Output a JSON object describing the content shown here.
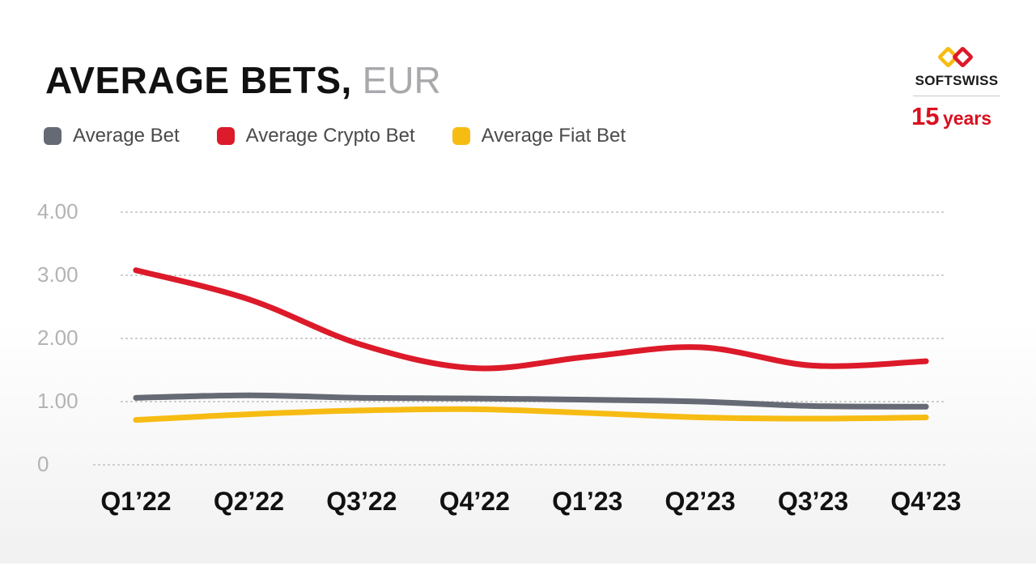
{
  "chart_data": {
    "type": "line",
    "title": "AVERAGE BETS,",
    "title_unit": "EUR",
    "categories": [
      "Q1’22",
      "Q2’22",
      "Q3’22",
      "Q4’22",
      "Q1’23",
      "Q2’23",
      "Q3’23",
      "Q4’23"
    ],
    "y_ticks": [
      "4.00",
      "3.00",
      "2.00",
      "1.00",
      "0"
    ],
    "ylim": [
      0,
      4
    ],
    "grid": true,
    "legend_position": "top-left",
    "series": [
      {
        "name": "Average Bet",
        "color": "#666a74",
        "values": [
          1.06,
          1.1,
          1.06,
          1.05,
          1.03,
          1.0,
          0.93,
          0.92
        ]
      },
      {
        "name": "Average Crypto Bet",
        "color": "#dc1a2a",
        "values": [
          3.08,
          2.62,
          1.9,
          1.53,
          1.71,
          1.86,
          1.57,
          1.64
        ]
      },
      {
        "name": "Average Fiat Bet",
        "color": "#f7bc13",
        "values": [
          0.71,
          0.8,
          0.86,
          0.88,
          0.82,
          0.75,
          0.73,
          0.75
        ]
      }
    ]
  },
  "brand": {
    "name": "SOFTSWISS",
    "years_number": "15",
    "years_word": "years",
    "accent": "#d9101f",
    "logo_colors": [
      "#f7bc13",
      "#dc1a2a"
    ]
  }
}
